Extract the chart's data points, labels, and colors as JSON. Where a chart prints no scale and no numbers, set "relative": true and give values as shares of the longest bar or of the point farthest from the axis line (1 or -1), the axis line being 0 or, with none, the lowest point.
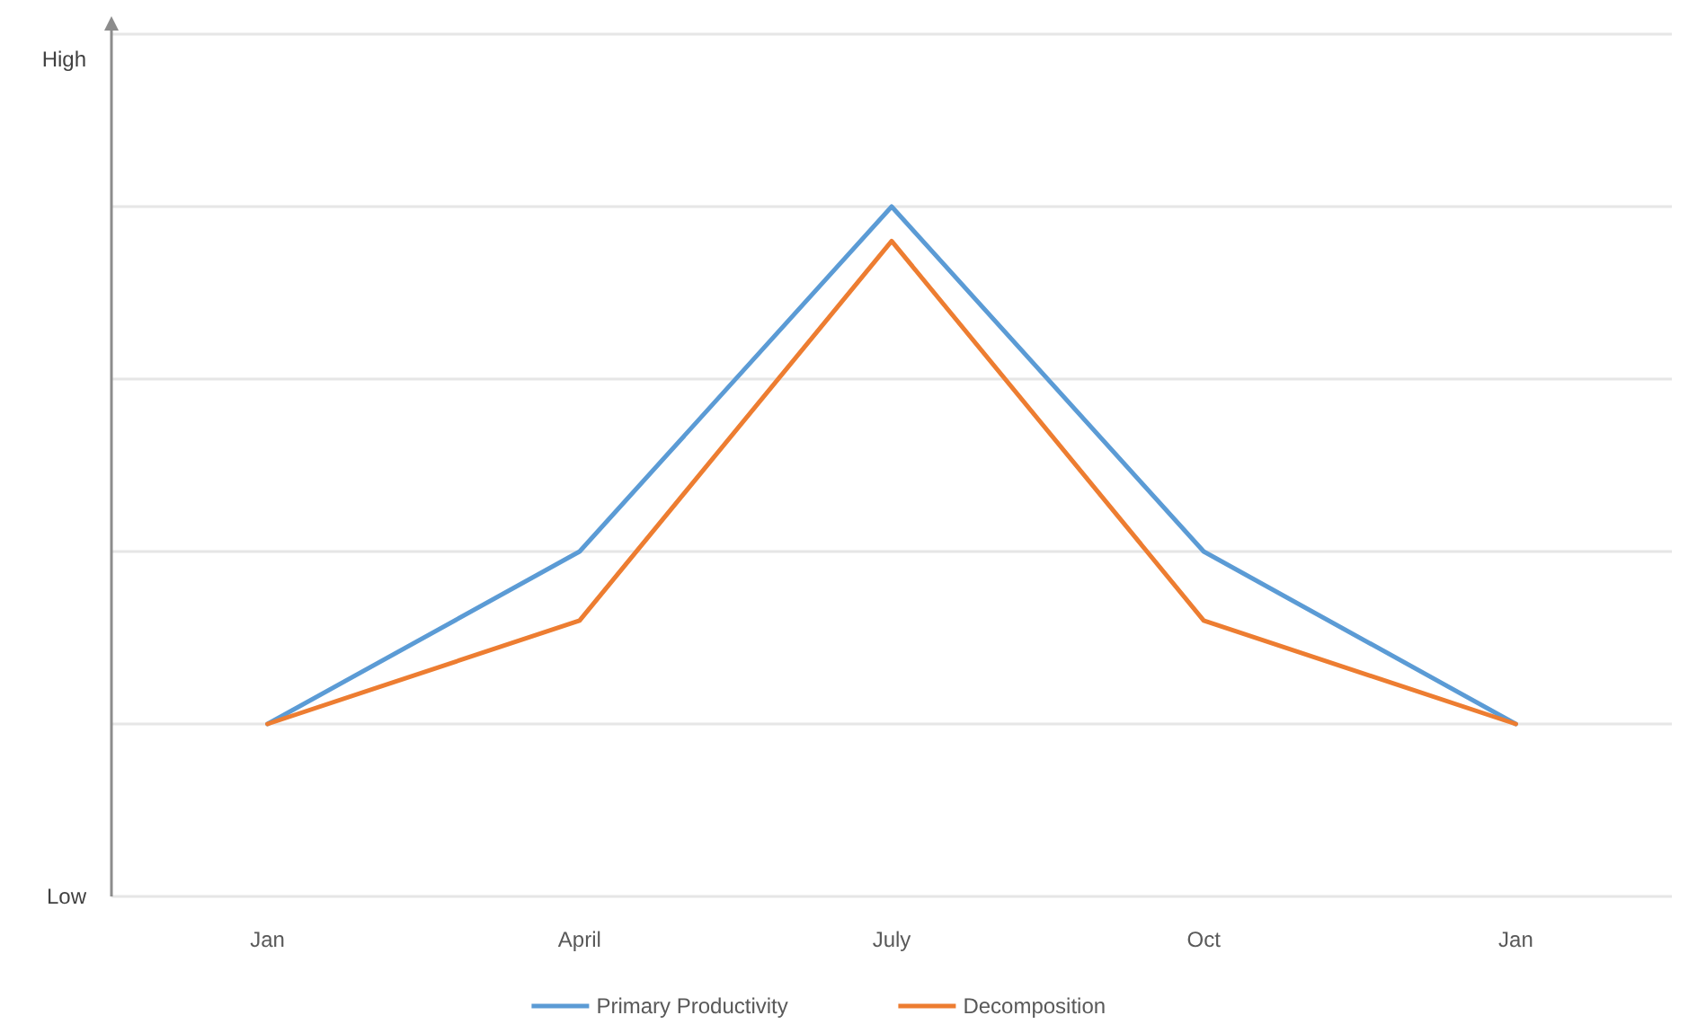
{
  "chart_data": {
    "type": "line",
    "categories": [
      "Jan",
      "April",
      "July",
      "Oct",
      "Jan"
    ],
    "series": [
      {
        "name": "Primary Productivity",
        "color": "#5b9bd5",
        "values": [
          0.25,
          0.5,
          1,
          0.5,
          0.25
        ]
      },
      {
        "name": "Decomposition",
        "color": "#ed7d31",
        "values": [
          0.25,
          0.4,
          0.95,
          0.4,
          0.25
        ]
      }
    ],
    "relative": true,
    "annotations": [
      "High",
      "Low"
    ],
    "grid": "y",
    "legend": "bottom",
    "marker": "none",
    "line_style": "solid"
  }
}
